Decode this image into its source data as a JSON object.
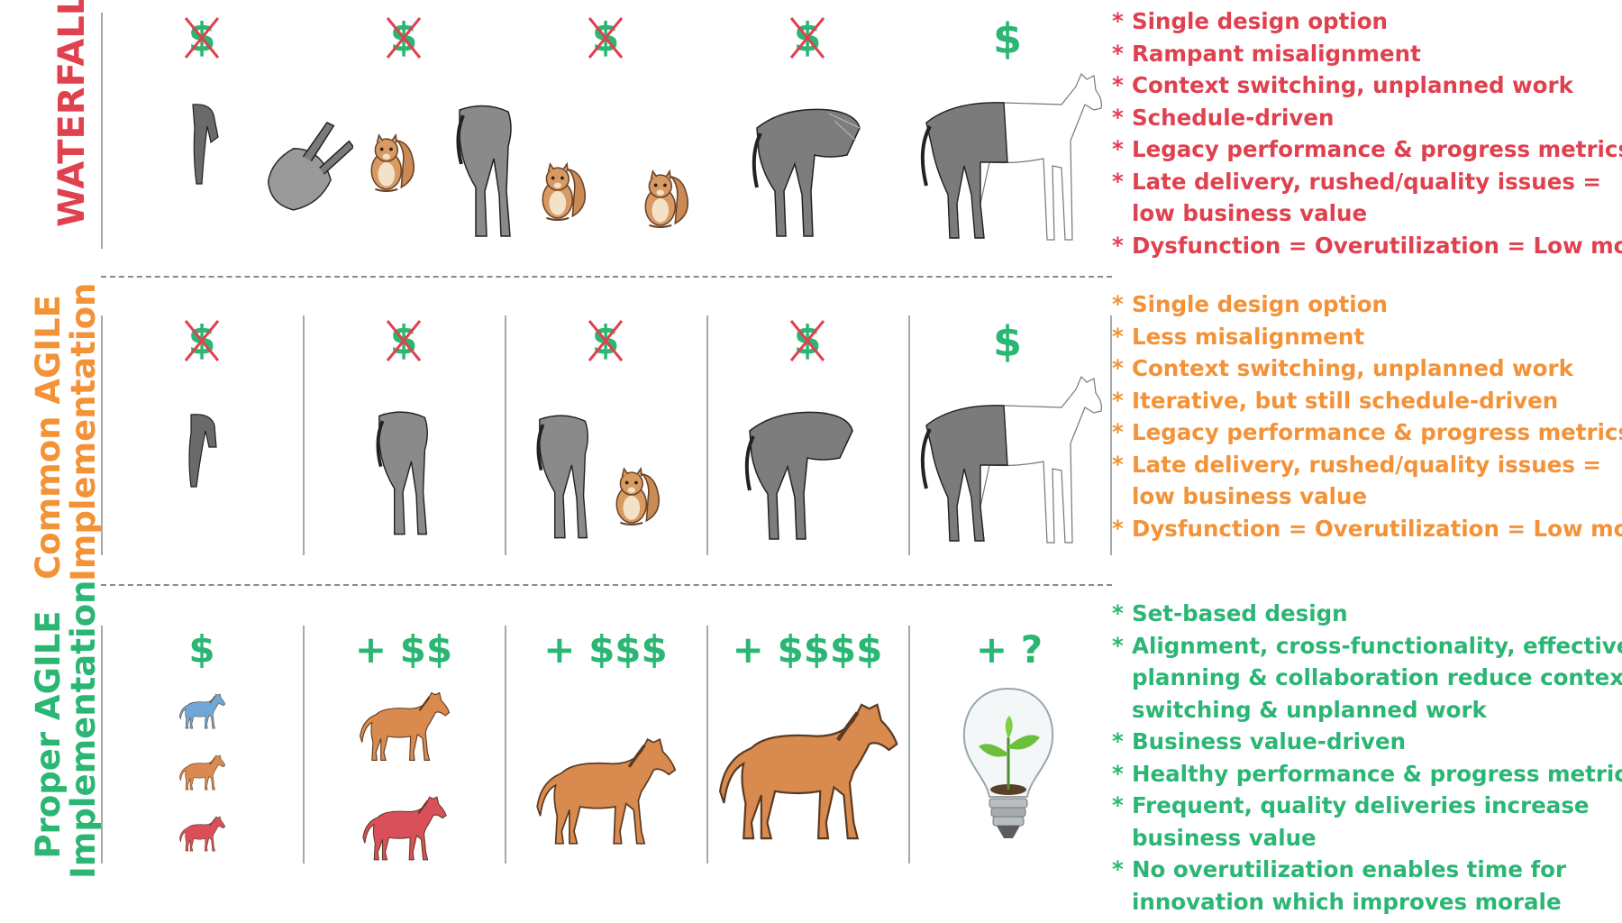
{
  "rows": {
    "waterfall": {
      "label": "WATERFALL",
      "color": "#e0414e",
      "money": [
        "$",
        "$",
        "$",
        "$",
        "$"
      ],
      "bullets": [
        {
          "star": "*",
          "text": "Single design option"
        },
        {
          "star": "*",
          "text": "Rampant misalignment"
        },
        {
          "star": "*",
          "text": "Context switching, unplanned work"
        },
        {
          "star": "*",
          "text": "Schedule-driven"
        },
        {
          "star": "*",
          "text": "Legacy performance & progress metrics"
        },
        {
          "star": "*",
          "text": "Late delivery, rushed/quality issues ="
        },
        {
          "star": "",
          "text": "low business value"
        },
        {
          "star": "*",
          "text": "Dysfunction = Overutilization = Low morale"
        }
      ]
    },
    "common": {
      "label_line1": "Common AGILE",
      "label_line2": "Implementation",
      "color": "#f39237",
      "money": [
        "$",
        "$",
        "$",
        "$",
        "$"
      ],
      "bullets": [
        {
          "star": "*",
          "text": "Single design option"
        },
        {
          "star": "*",
          "text": "Less misalignment"
        },
        {
          "star": "*",
          "text": "Context switching, unplanned work"
        },
        {
          "star": "*",
          "text": "Iterative, but still schedule-driven"
        },
        {
          "star": "*",
          "text": "Legacy performance & progress metrics"
        },
        {
          "star": "*",
          "text": "Late delivery, rushed/quality issues ="
        },
        {
          "star": "",
          "text": "low business value"
        },
        {
          "star": "*",
          "text": "Dysfunction = Overutilization = Low morale"
        }
      ]
    },
    "proper": {
      "label_line1": "Proper AGILE",
      "label_line2": "Implementation",
      "color": "#2bb673",
      "money": [
        "$",
        "+ $$",
        "+ $$$",
        "+ $$$$",
        "+ ?"
      ],
      "bullets": [
        {
          "star": "*",
          "text": "Set-based design"
        },
        {
          "star": "*",
          "text": "Alignment, cross-functionality, effective"
        },
        {
          "star": "",
          "text": "planning & collaboration reduce context"
        },
        {
          "star": "",
          "text": "switching & unplanned work"
        },
        {
          "star": "*",
          "text": "Business value-driven"
        },
        {
          "star": "*",
          "text": "Healthy performance & progress metrics"
        },
        {
          "star": "*",
          "text": "Frequent, quality deliveries increase"
        },
        {
          "star": "",
          "text": "business value"
        },
        {
          "star": "*",
          "text": "No overutilization enables time for"
        },
        {
          "star": "",
          "text": "innovation which improves morale"
        }
      ]
    }
  },
  "icons": {
    "crossed_money": "crossed-dollar-icon",
    "horse_part": "horse-part-sketch",
    "squirrel": "squirrel-icon",
    "horse": "horse-icon",
    "lightbulb": "lightbulb-sprout-icon"
  },
  "colors": {
    "red": "#e0414e",
    "orange": "#f39237",
    "green": "#2bb673",
    "blue_horse": "#6fa8d8",
    "orange_horse": "#d98a4e",
    "red_horse": "#d9505a"
  }
}
